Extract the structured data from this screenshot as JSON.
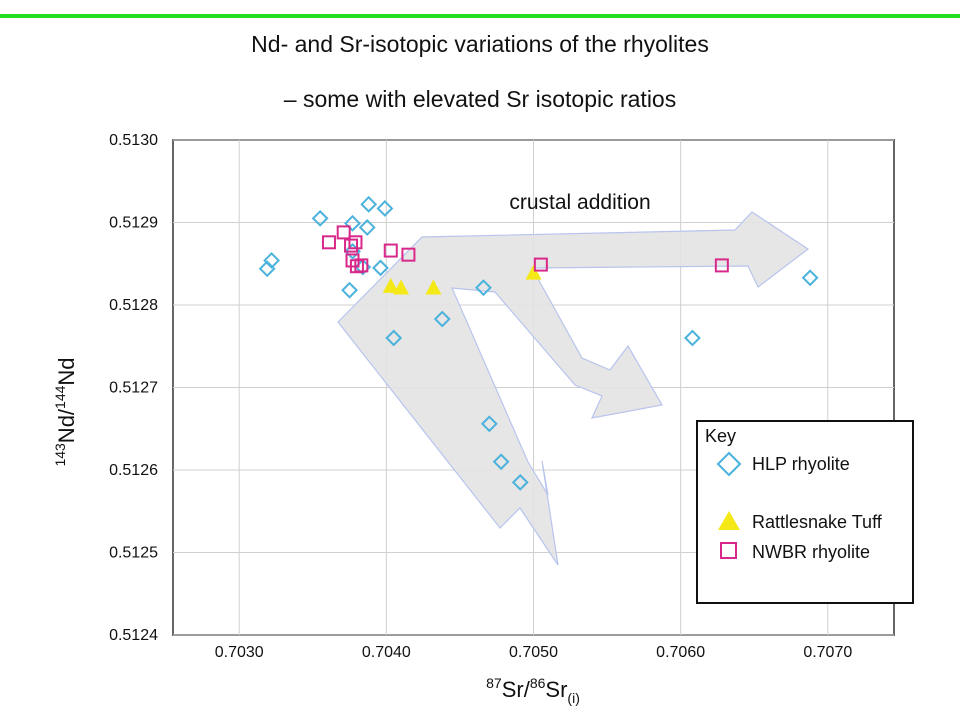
{
  "slide": {
    "title_line1": "Nd- and Sr-isotopic variations of the rhyolites",
    "title_line2": "– some with elevated Sr isotopic ratios"
  },
  "chart_data": {
    "type": "scatter",
    "xlabel": {
      "sup1": "87",
      "base1": "Sr/",
      "sup2": "86",
      "base2": "Sr",
      "sub": "(i)"
    },
    "ylabel": {
      "sup1": "143",
      "base1": "Nd/",
      "sup2": "144",
      "base2": "Nd"
    },
    "xlim": [
      0.70255,
      0.70745
    ],
    "ylim": [
      0.5124,
      0.513
    ],
    "xticks": [
      "0.7030",
      "0.7040",
      "0.7050",
      "0.7060",
      "0.7070"
    ],
    "yticks": [
      "0.5130",
      "0.5129",
      "0.5128",
      "0.5127",
      "0.5126",
      "0.5125",
      "0.5124"
    ],
    "grid": true,
    "annotation": "crustal addition",
    "legend": {
      "title": "Key",
      "position": "bottom-right",
      "entries": [
        "HLP  rhyolite",
        "Rattlesnake Tuff",
        "NWBR  rhyolite"
      ]
    },
    "series": [
      {
        "name": "HLP  rhyolite",
        "marker": "diamond",
        "color": "#4ab2dc",
        "points": [
          [
            0.70355,
            0.512905
          ],
          [
            0.70377,
            0.512899
          ],
          [
            0.70388,
            0.512922
          ],
          [
            0.70399,
            0.512917
          ],
          [
            0.70387,
            0.512894
          ],
          [
            0.70377,
            0.512865
          ],
          [
            0.70384,
            0.512846
          ],
          [
            0.70396,
            0.512845
          ],
          [
            0.70375,
            0.512818
          ],
          [
            0.70405,
            0.51276
          ],
          [
            0.70438,
            0.512783
          ],
          [
            0.70466,
            0.512821
          ],
          [
            0.70319,
            0.512844
          ],
          [
            0.70322,
            0.512854
          ],
          [
            0.7047,
            0.512656
          ],
          [
            0.70478,
            0.51261
          ],
          [
            0.70491,
            0.512585
          ],
          [
            0.70608,
            0.51276
          ],
          [
            0.70688,
            0.512833
          ]
        ]
      },
      {
        "name": "Rattlesnake Tuff",
        "marker": "triangle",
        "color": "#f4e816",
        "points": [
          [
            0.70403,
            0.512822
          ],
          [
            0.7041,
            0.51282
          ],
          [
            0.70432,
            0.51282
          ],
          [
            0.705,
            0.512838
          ]
        ]
      },
      {
        "name": "NWBR  rhyolite",
        "marker": "square",
        "color": "#d8288a",
        "points": [
          [
            0.70361,
            0.512876
          ],
          [
            0.70371,
            0.512888
          ],
          [
            0.70376,
            0.512872
          ],
          [
            0.70379,
            0.512876
          ],
          [
            0.70377,
            0.512854
          ],
          [
            0.7038,
            0.512847
          ],
          [
            0.70383,
            0.512848
          ],
          [
            0.70403,
            0.512866
          ],
          [
            0.70415,
            0.512861
          ],
          [
            0.70505,
            0.512849
          ],
          [
            0.70628,
            0.512848
          ]
        ]
      }
    ]
  }
}
